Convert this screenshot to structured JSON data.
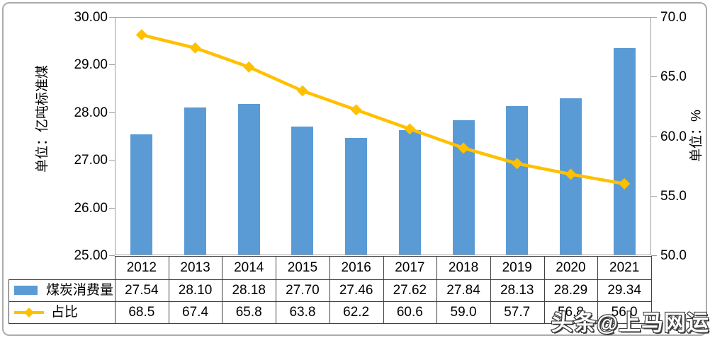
{
  "watermark": {
    "text": "头条@上马网运"
  },
  "chart_data": {
    "type": "bar",
    "subtype": "combo-bar-line-dual-axis",
    "categories": [
      "2012",
      "2013",
      "2014",
      "2015",
      "2016",
      "2017",
      "2018",
      "2019",
      "2020",
      "2021"
    ],
    "series": [
      {
        "name": "煤炭消费量",
        "type": "bar",
        "axis": "left",
        "color": "#5b9bd5",
        "values": [
          27.54,
          28.1,
          28.18,
          27.7,
          27.46,
          27.62,
          27.84,
          28.13,
          28.29,
          29.34
        ],
        "values_display": [
          "27.54",
          "28.10",
          "28.18",
          "27.70",
          "27.46",
          "27.62",
          "27.84",
          "28.13",
          "28.29",
          "29.34"
        ]
      },
      {
        "name": "占比",
        "type": "line",
        "axis": "right",
        "color": "#ffc000",
        "marker": "diamond",
        "values": [
          68.5,
          67.4,
          65.8,
          63.8,
          62.2,
          60.6,
          59.0,
          57.7,
          56.8,
          56.0
        ],
        "values_display": [
          "68.5",
          "67.4",
          "65.8",
          "63.8",
          "62.2",
          "60.6",
          "59.0",
          "57.7",
          "56.8",
          "56.0"
        ]
      }
    ],
    "left_axis": {
      "title": "单位：亿吨标准煤",
      "min": 25,
      "max": 30,
      "step": 1,
      "tick_labels": [
        "30.00",
        "29.00",
        "28.00",
        "27.00",
        "26.00",
        "25.00"
      ]
    },
    "right_axis": {
      "title": "单位：%",
      "min": 50,
      "max": 70,
      "step": 5,
      "tick_labels": [
        "70.0",
        "65.0",
        "60.0",
        "55.0",
        "50.0"
      ]
    },
    "grid": true,
    "legend_position": "data-table-left",
    "data_table": true,
    "title": ""
  }
}
